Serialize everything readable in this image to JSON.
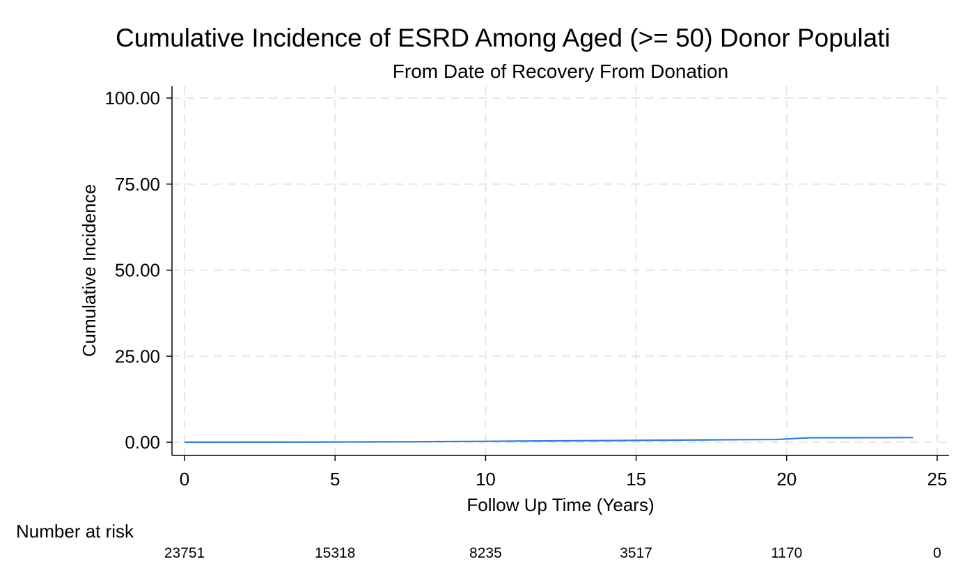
{
  "chart_data": {
    "type": "line",
    "title": "Cumulative Incidence of ESRD Among Aged (>= 50) Donor Populati",
    "subtitle": "From Date of Recovery From Donation",
    "xlabel": "Follow Up Time (Years)",
    "ylabel": "Cumulative Incidence",
    "xlim": [
      0,
      25
    ],
    "ylim": [
      0,
      100
    ],
    "xticks": [
      0,
      5,
      10,
      15,
      20,
      25
    ],
    "xtick_labels": [
      "0",
      "5",
      "10",
      "15",
      "20",
      "25"
    ],
    "yticks": [
      0,
      25,
      50,
      75,
      100
    ],
    "ytick_labels": [
      "0.00",
      "25.00",
      "50.00",
      "75.00",
      "100.00"
    ],
    "grid": true,
    "colors": {
      "line": "#2a7fe0",
      "grid": "#e6e6e6",
      "axis": "#000000"
    },
    "series": [
      {
        "x": [
          0,
          2,
          4,
          6,
          8,
          10,
          12,
          14,
          16,
          18,
          19.7,
          20.2,
          20.8,
          22,
          23,
          24.2
        ],
        "y": [
          0,
          0.02,
          0.05,
          0.1,
          0.18,
          0.27,
          0.38,
          0.48,
          0.6,
          0.72,
          0.8,
          1.05,
          1.3,
          1.32,
          1.33,
          1.35
        ]
      }
    ],
    "risk_table": {
      "label": "Number at risk",
      "times": [
        0,
        5,
        10,
        15,
        20,
        25
      ],
      "counts": [
        "23751",
        "15318",
        "8235",
        "3517",
        "1170",
        "0"
      ]
    }
  }
}
